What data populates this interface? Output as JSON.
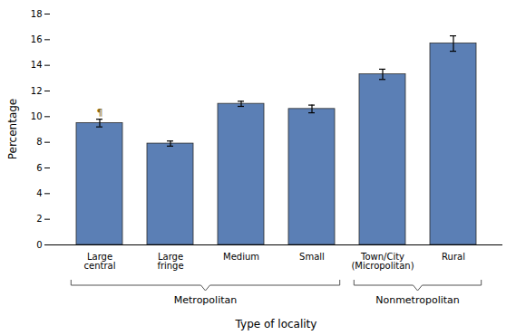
{
  "chart_data": {
    "type": "bar",
    "categories": [
      "Large\ncentral",
      "Large\nfringe",
      "Medium",
      "Small",
      "Town/City\n(Micropolitan)",
      "Rural"
    ],
    "values": [
      9.5,
      7.9,
      11.0,
      10.6,
      13.3,
      15.7
    ],
    "errors": [
      0.3,
      0.2,
      0.2,
      0.3,
      0.4,
      0.6
    ],
    "color": "#5b7fb5",
    "xlabel": "Type of locality",
    "ylabel": "Percentage",
    "ylim": [
      0,
      18
    ],
    "yticks": [
      0,
      2,
      4,
      6,
      8,
      10,
      12,
      14,
      16,
      18
    ],
    "annotations": [
      {
        "text": "¶",
        "x": "Large\ncentral",
        "y": 10.05,
        "color": "#8B6914"
      }
    ],
    "groups": [
      {
        "name": "Metropolitan",
        "categories": [
          "Large\ncentral",
          "Large\nfringe",
          "Medium",
          "Small"
        ]
      },
      {
        "name": "Nonmetropolitan",
        "categories": [
          "Town/City\n(Micropolitan)",
          "Rural"
        ]
      }
    ]
  }
}
